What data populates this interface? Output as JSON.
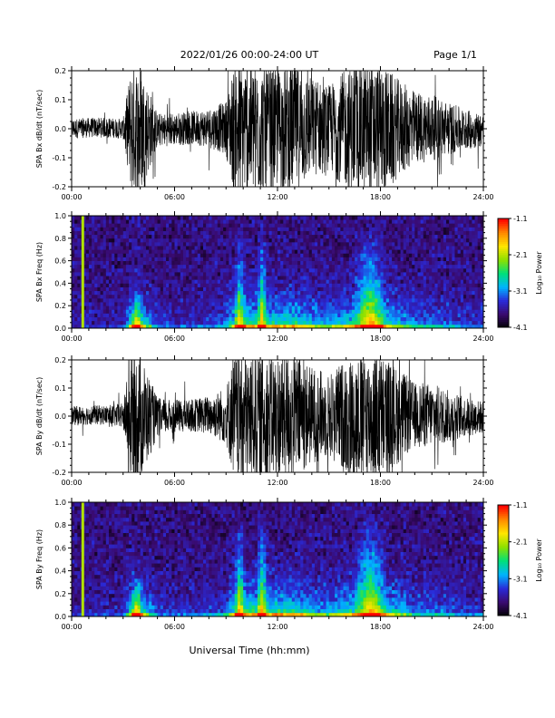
{
  "header": {
    "title": "2022/01/26  00:00-24:00 UT",
    "page": "Page 1/1"
  },
  "footer": {
    "xlabel": "Universal Time (hh:mm)"
  },
  "colorbar": {
    "label": "Log₁₀ Power",
    "ticks": [
      "-1.1",
      "-2.1",
      "-3.1",
      "-4.1"
    ],
    "range": [
      -4.1,
      -1.1
    ],
    "colormap": [
      "#000000",
      "#3a0a6e",
      "#2a2ad8",
      "#00b4ff",
      "#00e07a",
      "#8ce000",
      "#ffe600",
      "#ff8800",
      "#ff0000"
    ]
  },
  "chart_data": [
    {
      "type": "line",
      "title": "",
      "ylabel": "SPA Bx dB/dt (nT/sec)",
      "xlabel": "",
      "xlim": [
        0,
        24
      ],
      "ylim": [
        -0.2,
        0.2
      ],
      "yticks": [
        "0.2",
        "0.1",
        "0.0",
        "-0.1",
        "-0.2"
      ],
      "xticks": [
        "00:00",
        "06:00",
        "12:00",
        "18:00",
        "24:00"
      ],
      "series": [
        {
          "x_hours": [
            0,
            1,
            2,
            3,
            3.5,
            4,
            5,
            6,
            7,
            8,
            9,
            9.5,
            10,
            11,
            12,
            13,
            14,
            15,
            16,
            17,
            18,
            19,
            20,
            21,
            22,
            23,
            24
          ],
          "amplitude": [
            0.03,
            0.03,
            0.03,
            0.03,
            0.2,
            0.2,
            0.05,
            0.05,
            0.05,
            0.06,
            0.08,
            0.2,
            0.2,
            0.2,
            0.18,
            0.2,
            0.15,
            0.13,
            0.18,
            0.2,
            0.2,
            0.15,
            0.11,
            0.1,
            0.08,
            0.06,
            0.05
          ]
        }
      ]
    },
    {
      "type": "heatmap",
      "title": "",
      "ylabel": "SPA Bx Freq (Hz)",
      "xlabel": "",
      "xlim": [
        0,
        24
      ],
      "ylim": [
        0.0,
        1.0
      ],
      "yticks": [
        "1.0",
        "0.8",
        "0.6",
        "0.4",
        "0.2",
        "0.0"
      ],
      "xticks": [
        "00:00",
        "06:00",
        "12:00",
        "18:00",
        "24:00"
      ],
      "zlim": [
        -4.1,
        -1.1
      ],
      "z_label": "Log₁₀ Power",
      "features": [
        {
          "label": "narrowband line",
          "time_hour": 0.65,
          "log_power": -2.1
        },
        {
          "label": "burst",
          "time_hour": 3.8,
          "max_freq_hz": 0.3
        },
        {
          "label": "burst",
          "time_hour": 9.8,
          "max_freq_hz": 0.85
        },
        {
          "label": "burst",
          "time_hour": 11.1,
          "max_freq_hz": 0.95
        },
        {
          "label": "broadband enhancement",
          "time_hour": 17.4,
          "max_freq_hz": 0.95
        }
      ]
    },
    {
      "type": "line",
      "title": "",
      "ylabel": "SPA By dB/dt (nT/sec)",
      "xlabel": "",
      "xlim": [
        0,
        24
      ],
      "ylim": [
        -0.2,
        0.2
      ],
      "yticks": [
        "0.2",
        "0.1",
        "0.0",
        "-0.1",
        "-0.2"
      ],
      "xticks": [
        "00:00",
        "06:00",
        "12:00",
        "18:00",
        "24:00"
      ],
      "series": [
        {
          "x_hours": [
            0,
            1,
            2,
            3,
            3.5,
            4,
            5,
            6,
            7,
            8,
            9,
            9.5,
            10,
            11,
            12,
            13,
            14,
            15,
            16,
            17,
            18,
            19,
            20,
            21,
            22,
            23,
            24
          ],
          "amplitude": [
            0.03,
            0.03,
            0.03,
            0.04,
            0.2,
            0.2,
            0.06,
            0.05,
            0.05,
            0.06,
            0.09,
            0.2,
            0.2,
            0.2,
            0.2,
            0.2,
            0.15,
            0.13,
            0.18,
            0.2,
            0.2,
            0.15,
            0.1,
            0.1,
            0.08,
            0.06,
            0.05
          ]
        }
      ]
    },
    {
      "type": "heatmap",
      "title": "",
      "ylabel": "SPA By Freq (Hz)",
      "xlabel": "",
      "xlim": [
        0,
        24
      ],
      "ylim": [
        0.0,
        1.0
      ],
      "yticks": [
        "1.0",
        "0.8",
        "0.6",
        "0.4",
        "0.2",
        "0.0"
      ],
      "xticks": [
        "00:00",
        "06:00",
        "12:00",
        "18:00",
        "24:00"
      ],
      "zlim": [
        -4.1,
        -1.1
      ],
      "z_label": "Log₁₀ Power",
      "features": [
        {
          "label": "narrowband line",
          "time_hour": 0.65,
          "log_power": -2.1
        },
        {
          "label": "burst",
          "time_hour": 3.8,
          "max_freq_hz": 0.35
        },
        {
          "label": "burst",
          "time_hour": 9.8,
          "max_freq_hz": 0.85
        },
        {
          "label": "burst",
          "time_hour": 11.1,
          "max_freq_hz": 0.95
        },
        {
          "label": "broadband enhancement",
          "time_hour": 17.4,
          "max_freq_hz": 0.95
        }
      ]
    }
  ]
}
